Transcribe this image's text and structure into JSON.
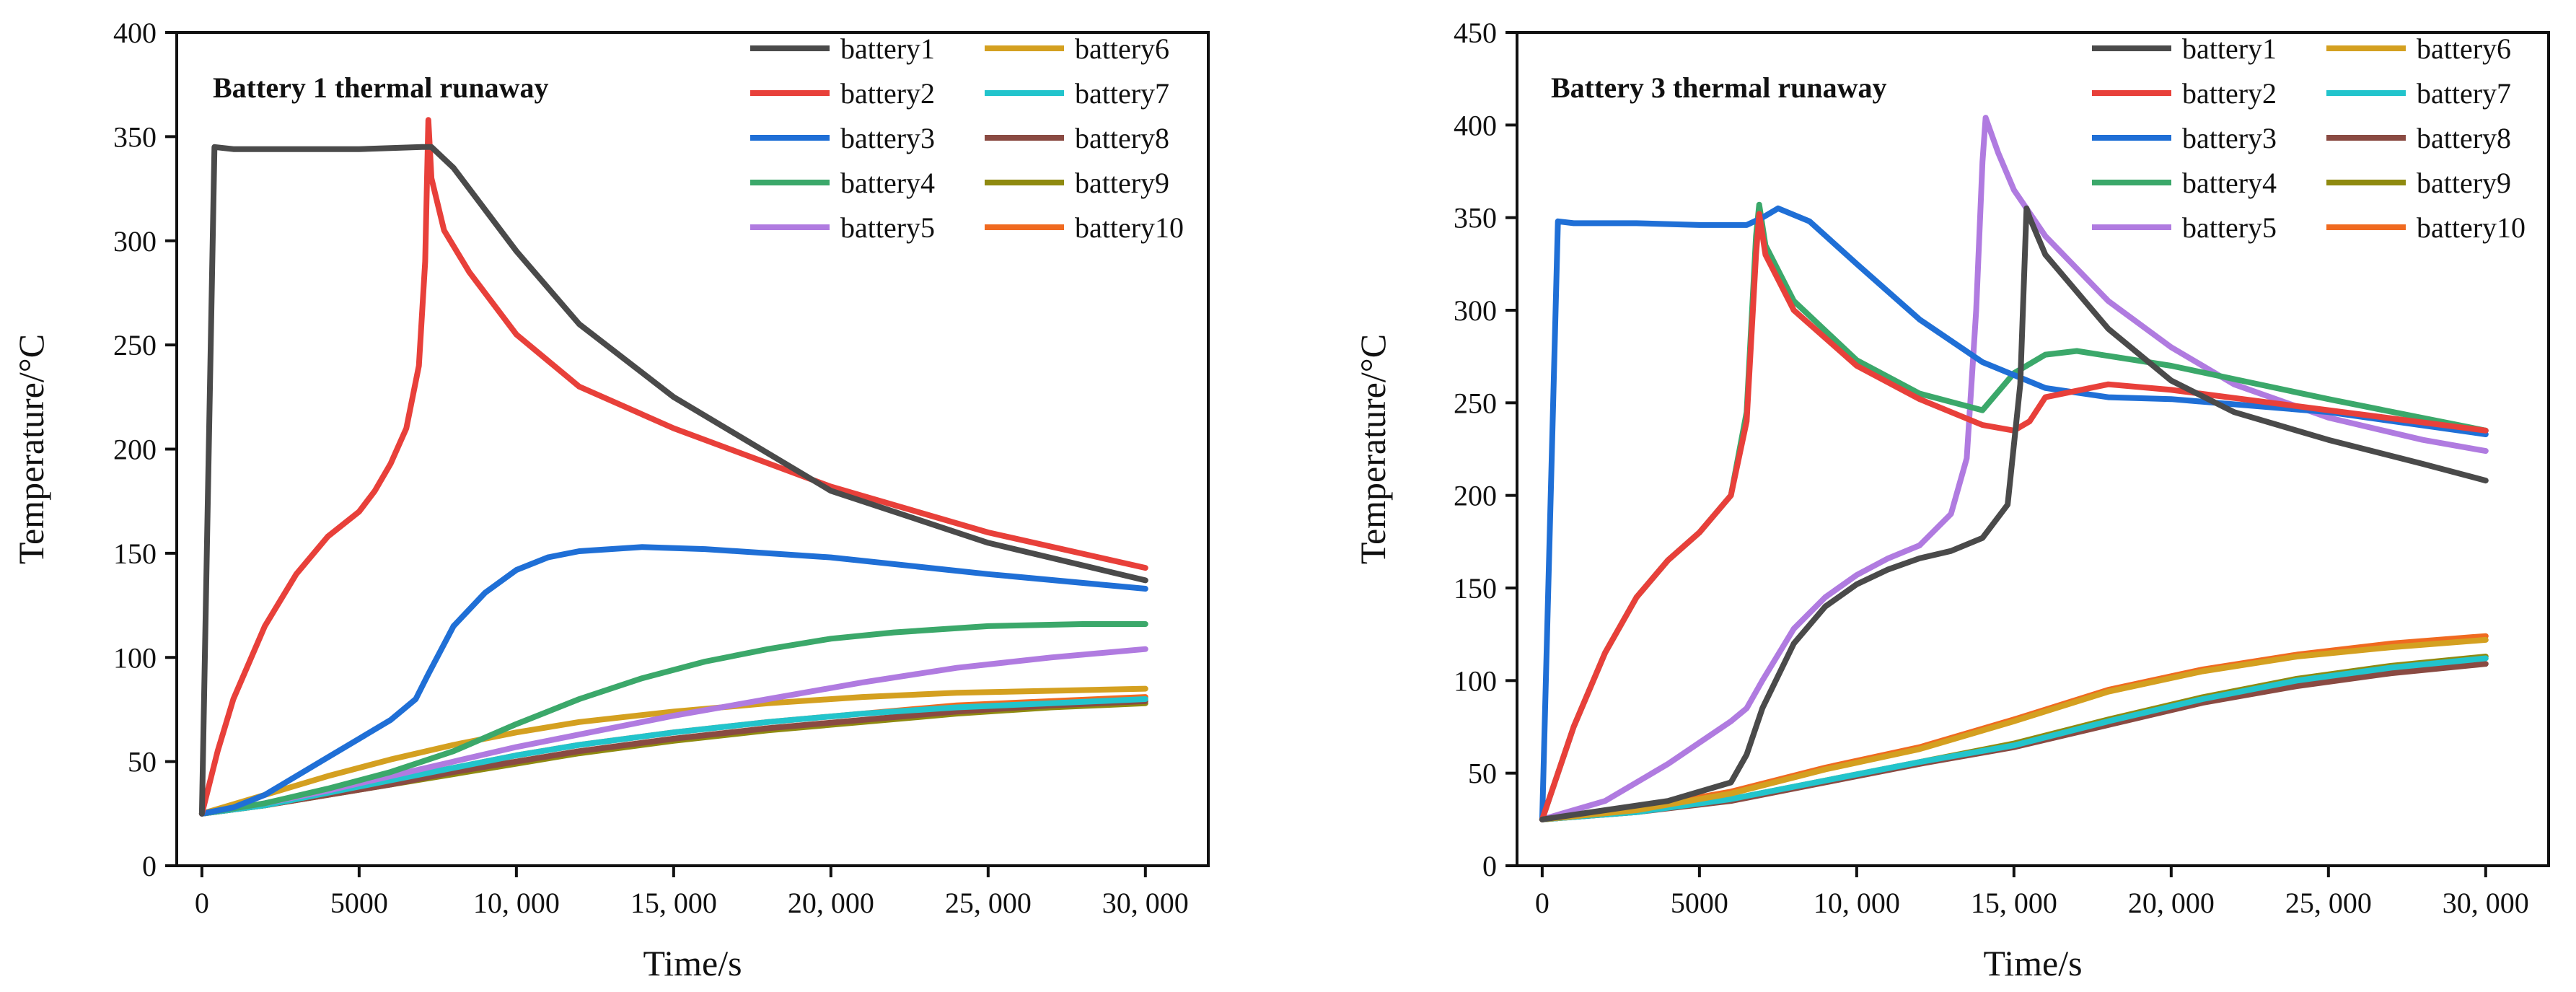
{
  "chart_data": [
    {
      "type": "line",
      "title": "Battery 1 thermal runaway",
      "xlabel": "Time/s",
      "ylabel": "Temperature/°C",
      "xlim": [
        -800,
        32000
      ],
      "ylim": [
        0,
        400
      ],
      "xticks": [
        0,
        5000,
        10000,
        15000,
        20000,
        25000,
        30000
      ],
      "xtick_labels": [
        "0",
        "5000",
        "10, 000",
        "15, 000",
        "20, 000",
        "25, 000",
        "30, 000"
      ],
      "yticks": [
        0,
        50,
        100,
        150,
        200,
        250,
        300,
        350,
        400
      ],
      "ytick_labels": [
        "0",
        "50",
        "100",
        "150",
        "200",
        "250",
        "300",
        "350",
        "400"
      ],
      "legend": "top-right",
      "series": [
        {
          "name": "battery1",
          "color": "#4a4a4a",
          "x": [
            0,
            400,
            1000,
            3000,
            5000,
            7000,
            7300,
            8000,
            10000,
            12000,
            15000,
            20000,
            25000,
            30000
          ],
          "y": [
            25,
            345,
            344,
            344,
            344,
            345,
            345,
            335,
            295,
            260,
            225,
            180,
            155,
            137
          ]
        },
        {
          "name": "battery2",
          "color": "#e8403a",
          "x": [
            0,
            500,
            1000,
            2000,
            3000,
            4000,
            5000,
            5500,
            6000,
            6500,
            6900,
            7100,
            7200,
            7300,
            7700,
            8500,
            10000,
            12000,
            15000,
            20000,
            25000,
            30000
          ],
          "y": [
            25,
            55,
            80,
            115,
            140,
            158,
            170,
            180,
            193,
            210,
            240,
            290,
            358,
            330,
            305,
            285,
            255,
            230,
            210,
            182,
            160,
            143
          ]
        },
        {
          "name": "battery3",
          "color": "#1f6fd6",
          "x": [
            0,
            1000,
            2000,
            3000,
            4000,
            5000,
            6000,
            6800,
            7200,
            8000,
            9000,
            10000,
            11000,
            12000,
            13000,
            14000,
            16000,
            20000,
            25000,
            30000
          ],
          "y": [
            25,
            28,
            34,
            43,
            52,
            61,
            70,
            80,
            92,
            115,
            131,
            142,
            148,
            151,
            152,
            153,
            152,
            148,
            140,
            133
          ]
        },
        {
          "name": "battery4",
          "color": "#3ba86a",
          "x": [
            0,
            2000,
            4000,
            6000,
            8000,
            10000,
            12000,
            14000,
            16000,
            18000,
            20000,
            22000,
            25000,
            28000,
            30000
          ],
          "y": [
            25,
            30,
            37,
            45,
            55,
            68,
            80,
            90,
            98,
            104,
            109,
            112,
            115,
            116,
            116
          ]
        },
        {
          "name": "battery5",
          "color": "#b07be0",
          "x": [
            0,
            2000,
            4000,
            6000,
            8000,
            10000,
            12000,
            15000,
            18000,
            21000,
            24000,
            27000,
            30000
          ],
          "y": [
            25,
            30,
            36,
            43,
            50,
            57,
            63,
            72,
            80,
            88,
            95,
            100,
            104
          ]
        },
        {
          "name": "battery6",
          "color": "#d4a020",
          "x": [
            0,
            2000,
            4000,
            6000,
            8000,
            10000,
            12000,
            15000,
            18000,
            21000,
            24000,
            27000,
            30000
          ],
          "y": [
            25,
            34,
            43,
            51,
            58,
            64,
            69,
            74,
            78,
            81,
            83,
            84,
            85
          ]
        },
        {
          "name": "battery7",
          "color": "#22c4cc",
          "x": [
            0,
            2000,
            4000,
            6000,
            8000,
            10000,
            12000,
            15000,
            18000,
            21000,
            24000,
            27000,
            30000
          ],
          "y": [
            25,
            29,
            35,
            41,
            47,
            53,
            58,
            64,
            69,
            73,
            76,
            78,
            80
          ]
        },
        {
          "name": "battery8",
          "color": "#8a4a42",
          "x": [
            0,
            2000,
            4000,
            6000,
            8000,
            10000,
            12000,
            15000,
            18000,
            21000,
            24000,
            27000,
            30000
          ],
          "y": [
            25,
            29,
            34,
            39,
            45,
            50,
            55,
            61,
            66,
            70,
            74,
            77,
            79
          ]
        },
        {
          "name": "battery9",
          "color": "#8f8a10",
          "x": [
            0,
            2000,
            4000,
            6000,
            8000,
            10000,
            12000,
            15000,
            18000,
            21000,
            24000,
            27000,
            30000
          ],
          "y": [
            25,
            29,
            34,
            39,
            44,
            49,
            54,
            60,
            65,
            69,
            73,
            76,
            78
          ]
        },
        {
          "name": "battery10",
          "color": "#f06a20",
          "x": [
            0,
            2000,
            4000,
            6000,
            8000,
            10000,
            12000,
            15000,
            18000,
            21000,
            24000,
            27000,
            30000
          ],
          "y": [
            25,
            29,
            35,
            41,
            47,
            53,
            58,
            64,
            69,
            73,
            77,
            79,
            81
          ]
        }
      ]
    },
    {
      "type": "line",
      "title": "Battery 3 thermal runaway",
      "xlabel": "Time/s",
      "ylabel": "Temperature/°C",
      "xlim": [
        -800,
        32000
      ],
      "ylim": [
        0,
        450
      ],
      "xticks": [
        0,
        5000,
        10000,
        15000,
        20000,
        25000,
        30000
      ],
      "xtick_labels": [
        "0",
        "5000",
        "10, 000",
        "15, 000",
        "20, 000",
        "25, 000",
        "30, 000"
      ],
      "yticks": [
        0,
        50,
        100,
        150,
        200,
        250,
        300,
        350,
        400,
        450
      ],
      "ytick_labels": [
        "0",
        "50",
        "100",
        "150",
        "200",
        "250",
        "300",
        "350",
        "400",
        "450"
      ],
      "legend": "top-right",
      "series": [
        {
          "name": "battery1",
          "color": "#4a4a4a",
          "x": [
            0,
            2000,
            4000,
            6000,
            6500,
            7000,
            8000,
            9000,
            10000,
            11000,
            12000,
            13000,
            14000,
            14800,
            15200,
            15400,
            15500,
            16000,
            18000,
            20000,
            22000,
            25000,
            28000,
            30000
          ],
          "y": [
            25,
            30,
            35,
            45,
            60,
            85,
            120,
            140,
            152,
            160,
            166,
            170,
            177,
            195,
            260,
            355,
            350,
            330,
            290,
            262,
            245,
            230,
            217,
            208
          ]
        },
        {
          "name": "battery2",
          "color": "#e8403a",
          "x": [
            0,
            1000,
            2000,
            3000,
            4000,
            5000,
            6000,
            6500,
            6800,
            6900,
            7100,
            8000,
            10000,
            12000,
            14000,
            15000,
            15500,
            16000,
            18000,
            20000,
            25000,
            30000
          ],
          "y": [
            25,
            75,
            115,
            145,
            165,
            180,
            200,
            240,
            330,
            352,
            330,
            300,
            270,
            252,
            238,
            235,
            240,
            253,
            260,
            257,
            246,
            235
          ]
        },
        {
          "name": "battery3",
          "color": "#1f6fd6",
          "x": [
            0,
            500,
            1000,
            3000,
            5000,
            6500,
            7000,
            7500,
            8500,
            10000,
            12000,
            14000,
            16000,
            18000,
            20000,
            25000,
            30000
          ],
          "y": [
            25,
            348,
            347,
            347,
            346,
            346,
            350,
            355,
            348,
            325,
            295,
            272,
            258,
            253,
            252,
            245,
            233
          ]
        },
        {
          "name": "battery4",
          "color": "#3ba86a",
          "x": [
            0,
            1000,
            2000,
            3000,
            4000,
            5000,
            6000,
            6500,
            6800,
            6900,
            7100,
            8000,
            10000,
            12000,
            14000,
            15000,
            16000,
            17000,
            20000,
            25000,
            30000
          ],
          "y": [
            25,
            75,
            115,
            145,
            165,
            180,
            200,
            245,
            340,
            357,
            335,
            305,
            273,
            255,
            246,
            266,
            276,
            278,
            270,
            252,
            235
          ]
        },
        {
          "name": "battery5",
          "color": "#b07be0",
          "x": [
            0,
            2000,
            4000,
            6000,
            6500,
            7000,
            8000,
            9000,
            10000,
            11000,
            12000,
            13000,
            13500,
            13800,
            14000,
            14100,
            14500,
            15000,
            16000,
            18000,
            20000,
            22000,
            25000,
            28000,
            30000
          ],
          "y": [
            25,
            35,
            55,
            78,
            85,
            100,
            128,
            145,
            157,
            166,
            173,
            190,
            220,
            300,
            380,
            404,
            385,
            365,
            340,
            305,
            280,
            260,
            242,
            230,
            224
          ]
        },
        {
          "name": "battery6",
          "color": "#d4a020",
          "x": [
            0,
            3000,
            6000,
            9000,
            12000,
            15000,
            18000,
            21000,
            24000,
            27000,
            30000
          ],
          "y": [
            25,
            30,
            39,
            52,
            63,
            78,
            94,
            105,
            113,
            118,
            122
          ]
        },
        {
          "name": "battery7",
          "color": "#22c4cc",
          "x": [
            0,
            3000,
            6000,
            9000,
            12000,
            15000,
            18000,
            21000,
            24000,
            27000,
            30000
          ],
          "y": [
            25,
            29,
            36,
            46,
            56,
            65,
            78,
            90,
            100,
            107,
            112
          ]
        },
        {
          "name": "battery8",
          "color": "#8a4a42",
          "x": [
            0,
            3000,
            6000,
            9000,
            12000,
            15000,
            18000,
            21000,
            24000,
            27000,
            30000
          ],
          "y": [
            25,
            29,
            35,
            45,
            55,
            64,
            76,
            88,
            97,
            104,
            109
          ]
        },
        {
          "name": "battery9",
          "color": "#8f8a10",
          "x": [
            0,
            3000,
            6000,
            9000,
            12000,
            15000,
            18000,
            21000,
            24000,
            27000,
            30000
          ],
          "y": [
            25,
            29,
            36,
            46,
            56,
            66,
            79,
            91,
            101,
            108,
            113
          ]
        },
        {
          "name": "battery10",
          "color": "#f06a20",
          "x": [
            0,
            3000,
            6000,
            9000,
            12000,
            15000,
            18000,
            21000,
            24000,
            27000,
            30000
          ],
          "y": [
            25,
            31,
            40,
            53,
            64,
            79,
            95,
            106,
            114,
            120,
            124
          ]
        }
      ]
    }
  ]
}
